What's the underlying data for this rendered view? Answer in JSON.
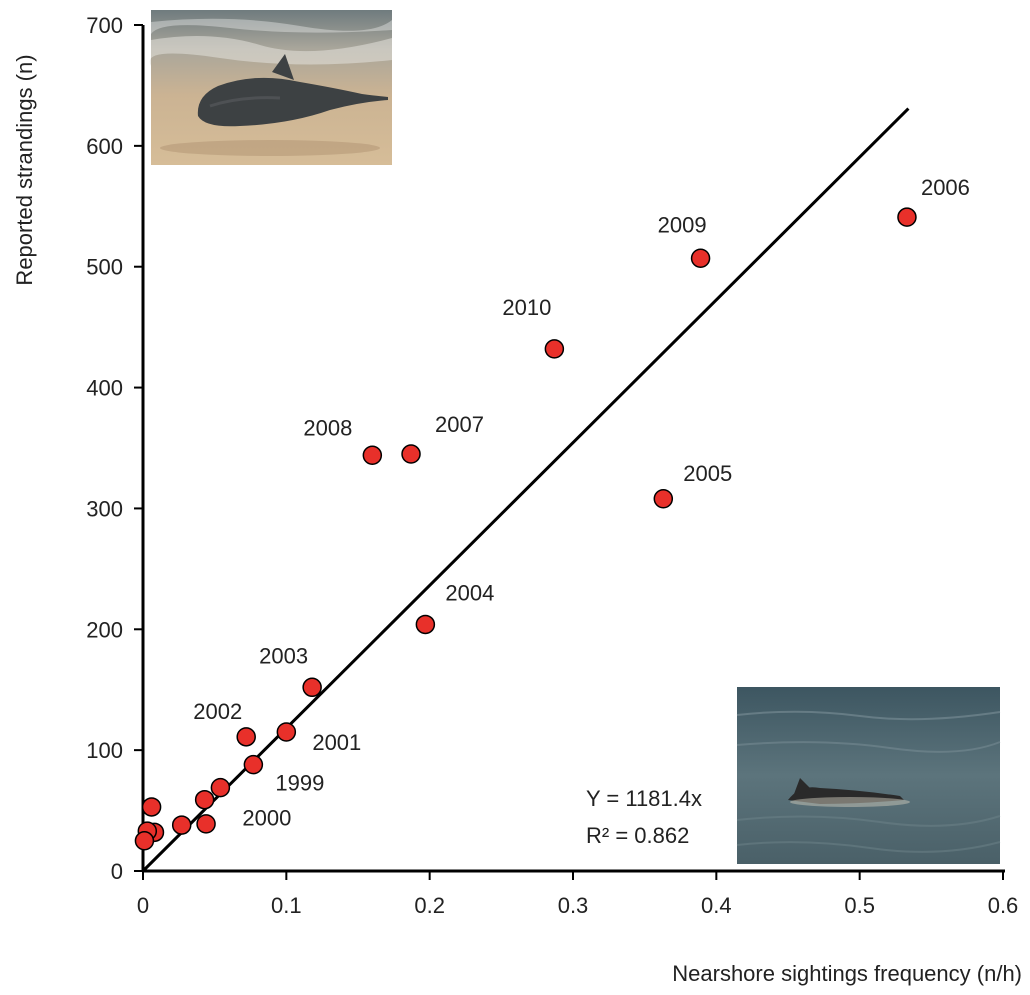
{
  "chart_data": {
    "type": "scatter",
    "title": "",
    "xlabel": "Nearshore sightings frequency (n/h)",
    "ylabel": "Reported strandings (n)",
    "xlim": [
      0,
      0.6
    ],
    "ylim": [
      0,
      700
    ],
    "x_ticks": [
      "0",
      "0.1",
      "0.2",
      "0.3",
      "0.4",
      "0.5",
      "0.6"
    ],
    "y_ticks": [
      "0",
      "100",
      "200",
      "300",
      "400",
      "500",
      "600",
      "700"
    ],
    "grid": false,
    "marker_color": "#e8302a",
    "marker_edge_color": "#000000",
    "points": [
      {
        "x": 0.077,
        "y": 88,
        "label": "1999"
      },
      {
        "x": 0.054,
        "y": 69,
        "label": "2000"
      },
      {
        "x": 0.1,
        "y": 115,
        "label": "2001"
      },
      {
        "x": 0.072,
        "y": 111,
        "label": "2002"
      },
      {
        "x": 0.118,
        "y": 152,
        "label": "2003"
      },
      {
        "x": 0.197,
        "y": 204,
        "label": "2004"
      },
      {
        "x": 0.363,
        "y": 308,
        "label": "2005"
      },
      {
        "x": 0.533,
        "y": 541,
        "label": "2006"
      },
      {
        "x": 0.187,
        "y": 345,
        "label": "2007"
      },
      {
        "x": 0.16,
        "y": 344,
        "label": "2008"
      },
      {
        "x": 0.389,
        "y": 507,
        "label": "2009"
      },
      {
        "x": 0.287,
        "y": 432,
        "label": "2010"
      },
      {
        "x": 0.006,
        "y": 53,
        "label": ""
      },
      {
        "x": 0.043,
        "y": 59,
        "label": ""
      },
      {
        "x": 0.044,
        "y": 39,
        "label": ""
      },
      {
        "x": 0.027,
        "y": 38,
        "label": ""
      },
      {
        "x": 0.008,
        "y": 32,
        "label": ""
      },
      {
        "x": 0.003,
        "y": 33,
        "label": ""
      },
      {
        "x": 0.001,
        "y": 25,
        "label": ""
      }
    ],
    "trendline": {
      "slope": 1181.4,
      "intercept": 0,
      "x_range": [
        0.0,
        0.534
      ]
    },
    "annotations": {
      "equation": "Y = 1181.4x",
      "r_squared": "R² = 0.862"
    }
  },
  "images": [
    {
      "name": "stranded-porpoise-photo",
      "colors": [
        "#8f8a82",
        "#c9b79a",
        "#3e4243"
      ]
    },
    {
      "name": "swimming-porpoise-photo",
      "colors": [
        "#4e6672",
        "#3a4a50",
        "#2b2b2b"
      ]
    }
  ]
}
